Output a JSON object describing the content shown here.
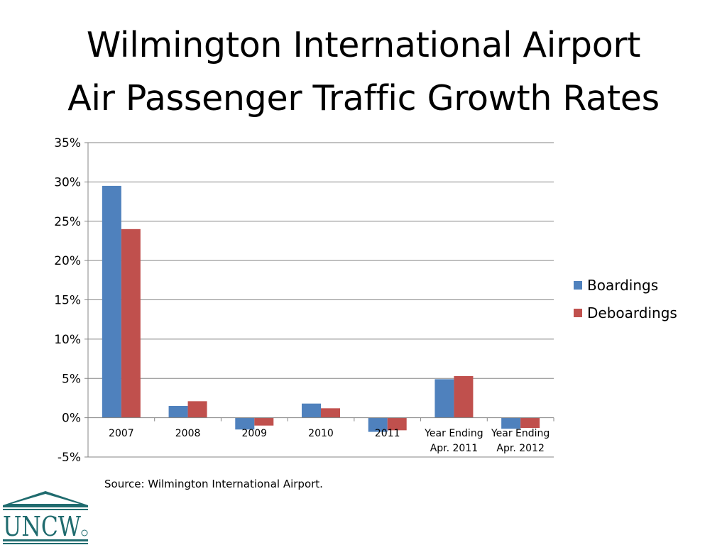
{
  "title_line1": "Wilmington International Airport",
  "title_line2": "Air Passenger Traffic Growth Rates",
  "source": "Source: Wilmington International Airport.",
  "logo_text": "UNCW",
  "chart_data": {
    "type": "bar",
    "categories": [
      [
        "2007"
      ],
      [
        "2008"
      ],
      [
        "2009"
      ],
      [
        "2010"
      ],
      [
        "2011"
      ],
      [
        "Year Ending",
        "Apr. 2011"
      ],
      [
        "Year Ending",
        "Apr. 2012"
      ]
    ],
    "series": [
      {
        "name": "Boardings",
        "color": "#4F81BD",
        "values": [
          29.5,
          1.5,
          -1.5,
          1.8,
          -1.8,
          4.9,
          -1.4
        ]
      },
      {
        "name": "Deboardings",
        "color": "#C0504D",
        "values": [
          24.0,
          2.1,
          -1.0,
          1.2,
          -1.6,
          5.3,
          -1.3
        ]
      }
    ],
    "ylim": [
      -5,
      35
    ],
    "yticks": [
      35,
      30,
      25,
      20,
      15,
      10,
      5,
      0,
      -5
    ],
    "ytick_format": "percent",
    "grid": true,
    "legend": "right"
  }
}
